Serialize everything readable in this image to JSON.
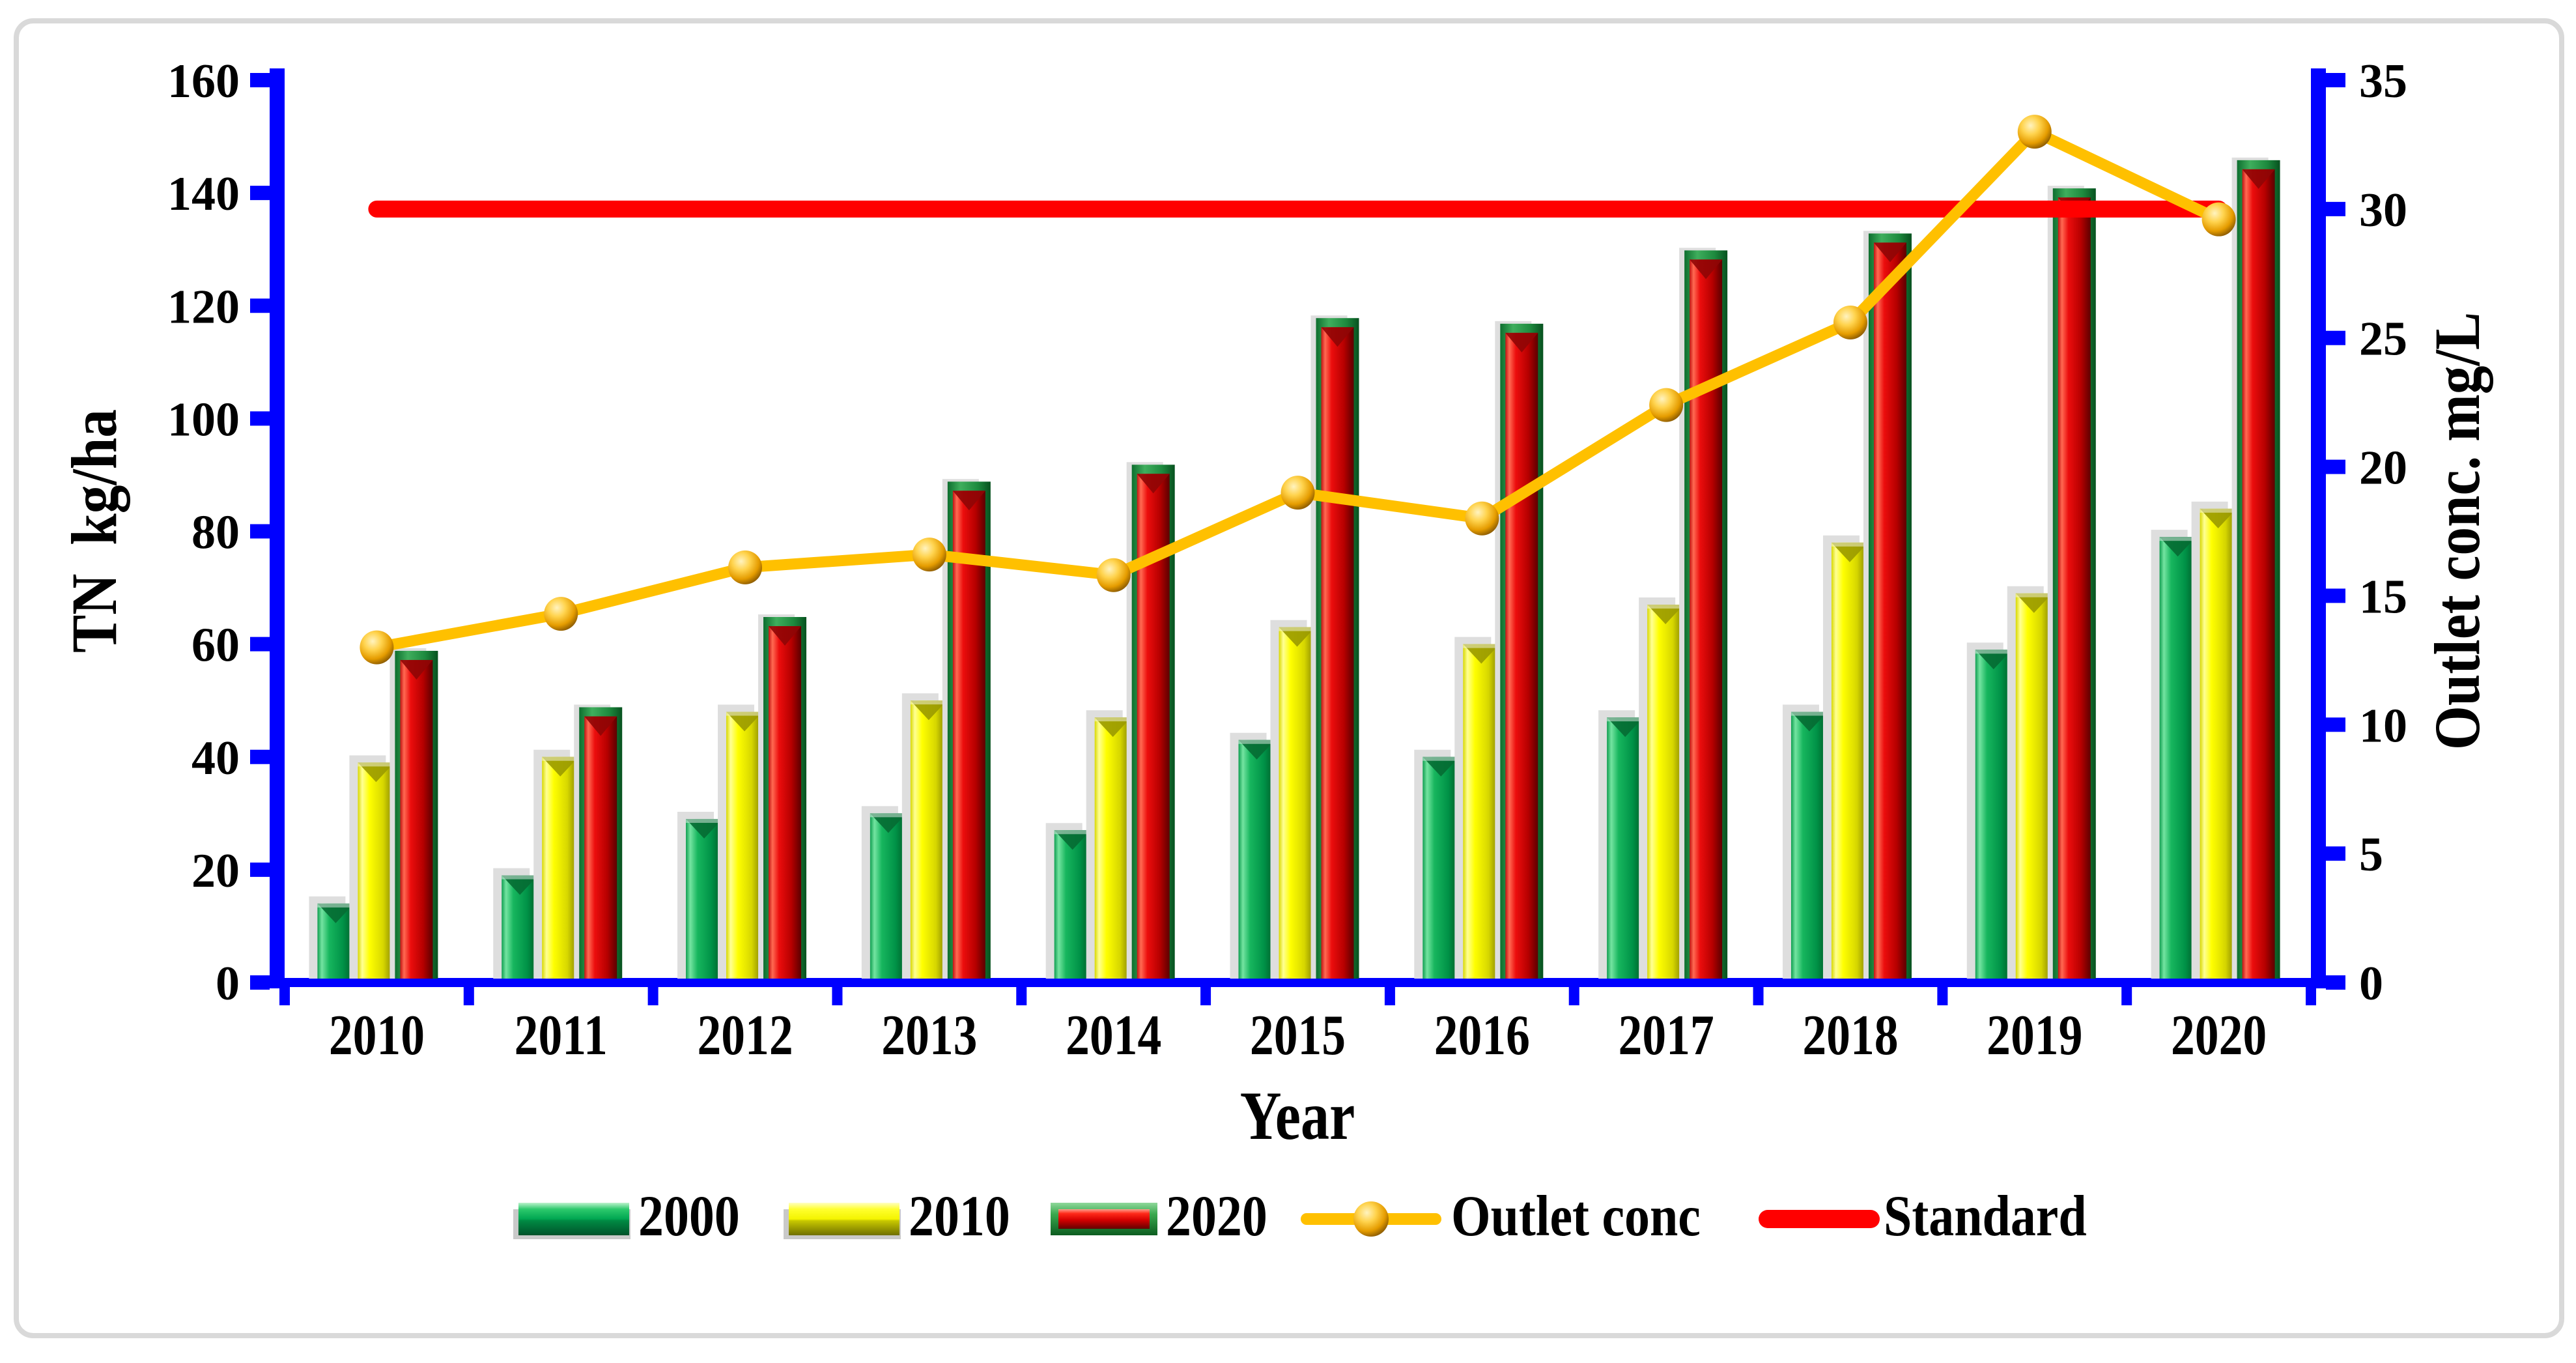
{
  "chart_data": {
    "type": "bar",
    "subtype": "grouped-3d-bars-with-lines",
    "title": "",
    "xlabel": "Year",
    "ylabel": "TN  kg/ha",
    "ylabel_right": "Outlet conc. mg/L",
    "categories": [
      "2010",
      "2011",
      "2012",
      "2013",
      "2014",
      "2015",
      "2016",
      "2017",
      "2018",
      "2019",
      "2020"
    ],
    "series": [
      {
        "name": "2000",
        "type": "bar",
        "axis": "left",
        "values": [
          14,
          19,
          29,
          30,
          27,
          43,
          40,
          47,
          48,
          59,
          79
        ]
      },
      {
        "name": "2010",
        "type": "bar",
        "axis": "left",
        "values": [
          39,
          40,
          48,
          50,
          47,
          63,
          60,
          67,
          78,
          69,
          84
        ]
      },
      {
        "name": "2020",
        "type": "bar",
        "axis": "left",
        "values": [
          58,
          48,
          64,
          88,
          91,
          117,
          116,
          129,
          132,
          140,
          145
        ]
      },
      {
        "name": "Outlet conc",
        "type": "line",
        "axis": "right",
        "values": [
          13,
          14.3,
          16.1,
          16.6,
          15.8,
          19,
          18,
          22.4,
          25.6,
          33,
          29.6
        ]
      },
      {
        "name": "Standard",
        "type": "refline",
        "axis": "right",
        "value": 30
      }
    ],
    "y_axis_left": {
      "min": 0,
      "max": 160,
      "ticks": [
        0,
        20,
        40,
        60,
        80,
        100,
        120,
        140,
        160
      ]
    },
    "y_axis_right": {
      "min": 0,
      "max": 35,
      "ticks": [
        0,
        5,
        10,
        15,
        20,
        25,
        30,
        35
      ]
    },
    "legend_position": "bottom",
    "grid": false
  },
  "colors": {
    "axis_blue": "#0000FF",
    "bar_2000_green": "#00A651",
    "bar_2010_yellow": "#FFFF00",
    "bar_2020_red": "#D80000",
    "bar_2020_frame_green": "#1E7A2E",
    "outlet_line_gold": "#FFC000",
    "standard_line_red": "#FF0000",
    "bar_shadow_gray": "#DEDEDE",
    "frame_border_gray": "#D9D9D9",
    "text_black": "#000000"
  }
}
